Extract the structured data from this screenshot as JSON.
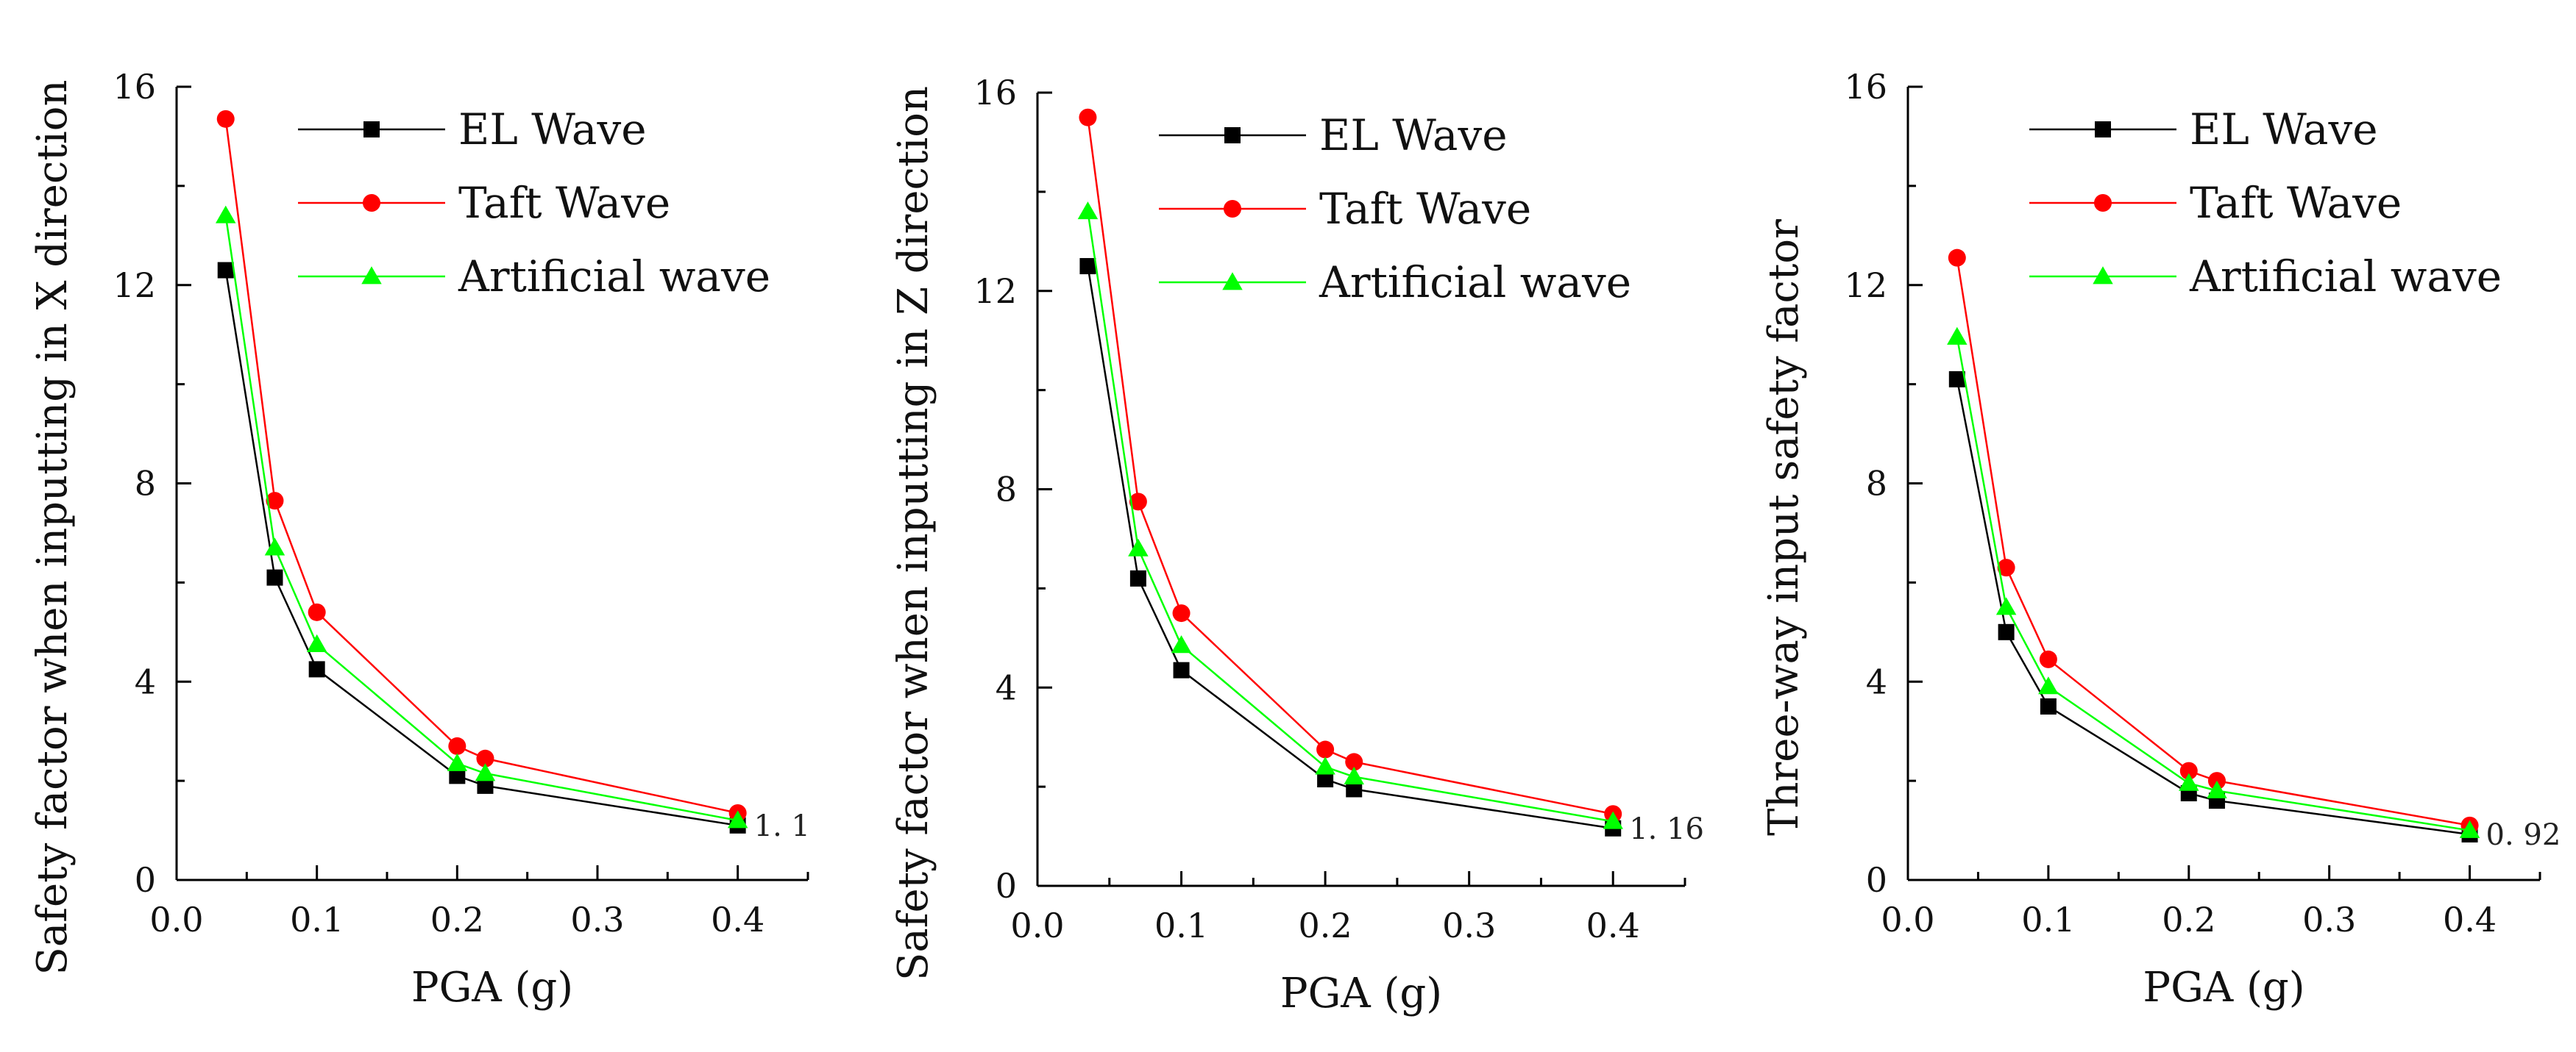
{
  "chart_data": [
    {
      "type": "line",
      "title": "",
      "xlabel": "PGA (g)",
      "ylabel": "Safety factor when inputting in X direction",
      "xlim": [
        0.0,
        0.45
      ],
      "ylim": [
        0,
        16
      ],
      "xticks": [
        "0.0",
        "0.1",
        "0.2",
        "0.3",
        "0.4"
      ],
      "yticks": [
        "0",
        "4",
        "8",
        "12",
        "16"
      ],
      "legend_position": "top-right",
      "annotation": {
        "text": "1. 1",
        "x": 0.4,
        "y": 1.1
      },
      "x": [
        0.035,
        0.07,
        0.1,
        0.2,
        0.22,
        0.4
      ],
      "series": [
        {
          "name": "EL Wave",
          "color": "#000000",
          "marker": "square",
          "values": [
            12.3,
            6.1,
            4.25,
            2.1,
            1.9,
            1.1
          ]
        },
        {
          "name": "Taft Wave",
          "color": "#ff0000",
          "marker": "circle",
          "values": [
            15.35,
            7.65,
            5.4,
            2.7,
            2.45,
            1.35
          ]
        },
        {
          "name": "Artificial wave",
          "color": "#00ff00",
          "marker": "triangle",
          "values": [
            13.4,
            6.7,
            4.75,
            2.35,
            2.15,
            1.2
          ]
        }
      ]
    },
    {
      "type": "line",
      "title": "",
      "xlabel": "PGA (g)",
      "ylabel": "Safety factor when inputting in Z direction",
      "xlim": [
        0.0,
        0.45
      ],
      "ylim": [
        0,
        16
      ],
      "xticks": [
        "0.0",
        "0.1",
        "0.2",
        "0.3",
        "0.4"
      ],
      "yticks": [
        "0",
        "4",
        "8",
        "12",
        "16"
      ],
      "legend_position": "top-right",
      "annotation": {
        "text": "1. 16",
        "x": 0.4,
        "y": 1.16
      },
      "x": [
        0.035,
        0.07,
        0.1,
        0.2,
        0.22,
        0.4
      ],
      "series": [
        {
          "name": "EL Wave",
          "color": "#000000",
          "marker": "square",
          "values": [
            12.5,
            6.2,
            4.35,
            2.15,
            1.95,
            1.16
          ]
        },
        {
          "name": "Taft Wave",
          "color": "#ff0000",
          "marker": "circle",
          "values": [
            15.5,
            7.75,
            5.5,
            2.75,
            2.5,
            1.45
          ]
        },
        {
          "name": "Artificial wave",
          "color": "#00ff00",
          "marker": "triangle",
          "values": [
            13.6,
            6.8,
            4.85,
            2.4,
            2.2,
            1.3
          ]
        }
      ]
    },
    {
      "type": "line",
      "title": "",
      "xlabel": "PGA (g)",
      "ylabel": "Three-way input safety factor",
      "xlim": [
        0.0,
        0.45
      ],
      "ylim": [
        0,
        16
      ],
      "xticks": [
        "0.0",
        "0.1",
        "0.2",
        "0.3",
        "0.4"
      ],
      "yticks": [
        "0",
        "4",
        "8",
        "12",
        "16"
      ],
      "legend_position": "top-right",
      "annotation": {
        "text": "0. 92",
        "x": 0.4,
        "y": 0.92
      },
      "x": [
        0.035,
        0.07,
        0.1,
        0.2,
        0.22,
        0.4
      ],
      "series": [
        {
          "name": "EL Wave",
          "color": "#000000",
          "marker": "square",
          "values": [
            10.1,
            5.0,
            3.5,
            1.75,
            1.6,
            0.92
          ]
        },
        {
          "name": "Taft Wave",
          "color": "#ff0000",
          "marker": "circle",
          "values": [
            12.55,
            6.3,
            4.45,
            2.2,
            2.0,
            1.1
          ]
        },
        {
          "name": "Artificial wave",
          "color": "#00ff00",
          "marker": "triangle",
          "values": [
            10.95,
            5.5,
            3.9,
            1.95,
            1.8,
            1.0
          ]
        }
      ]
    }
  ]
}
